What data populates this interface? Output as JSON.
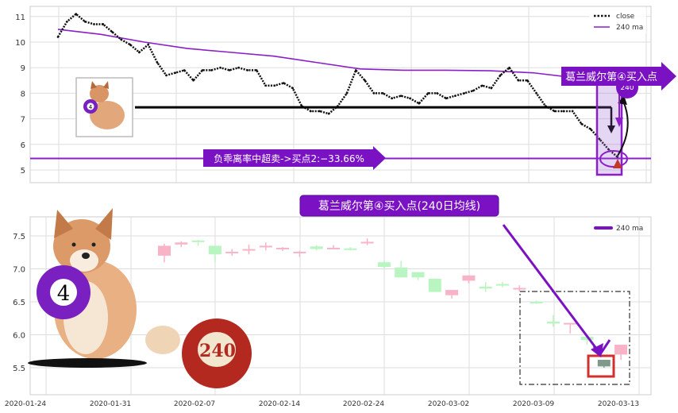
{
  "chart_data": [
    {
      "type": "line",
      "legend": [
        "close",
        "240 ma"
      ],
      "legend_position": "top-right",
      "grid": true,
      "ylim": [
        4.5,
        11.4
      ],
      "yticks": [
        "5",
        "6",
        "7",
        "8",
        "9",
        "10",
        "11"
      ],
      "series": [
        {
          "name": "close",
          "style": "dotted",
          "color": "#111111",
          "values": [
            10.2,
            10.8,
            11.1,
            10.8,
            10.7,
            10.7,
            10.4,
            10.1,
            9.9,
            9.6,
            9.9,
            9.2,
            8.7,
            8.8,
            8.9,
            8.5,
            8.9,
            8.9,
            9.0,
            8.9,
            9.0,
            8.9,
            8.9,
            8.3,
            8.3,
            8.4,
            8.2,
            7.5,
            7.3,
            7.3,
            7.2,
            7.5,
            8.0,
            8.9,
            8.5,
            8.0,
            8.0,
            7.8,
            7.9,
            7.8,
            7.6,
            8.0,
            8.0,
            7.8,
            7.9,
            8.0,
            8.1,
            8.3,
            8.2,
            8.7,
            9.0,
            8.5,
            8.5,
            8.0,
            7.5,
            7.3,
            7.3,
            7.3,
            6.8,
            6.6,
            6.2,
            5.8,
            5.5
          ]
        },
        {
          "name": "240 ma",
          "color": "#8a1fc8",
          "values": [
            10.5,
            10.3,
            10.0,
            9.75,
            9.6,
            9.45,
            9.2,
            8.95,
            8.9,
            8.9,
            8.88,
            8.8,
            8.6,
            8.4
          ]
        }
      ],
      "hlines": [
        {
          "value": 5.45,
          "color": "#8a1fc8"
        },
        {
          "value": 7.45,
          "color": "#000000"
        }
      ],
      "annotations": {
        "oversold": "负乖离率中超卖->买点2:−33.66%",
        "buy_point": "葛兰威尔第④买入点",
        "bubble": "240"
      }
    },
    {
      "type": "candlestick",
      "legend": [
        "240 ma"
      ],
      "legend_position": "top-right",
      "grid": true,
      "ylim": [
        5.1,
        7.8
      ],
      "yticks": [
        "5.5",
        "6.0",
        "6.5",
        "7.0",
        "7.5"
      ],
      "xticks": [
        "2020-01-24",
        "2020-01-31",
        "2020-02-07",
        "2020-02-14",
        "2020-02-24",
        "2020-03-02",
        "2020-03-09",
        "2020-03-13"
      ],
      "title_annotation": "葛兰威尔第④买入点(240日均线)",
      "ball_label": "240",
      "ball_number": "4",
      "colors": {
        "up": "#f9b3c6",
        "down": "#b9f5c0",
        "highlight": "#7f9a8a",
        "accent": "#7a12c4",
        "box": "#d0312d"
      },
      "candles": [
        {
          "o": 7.2,
          "c": 7.35,
          "h": 7.38,
          "l": 7.1,
          "color": "up"
        },
        {
          "o": 7.37,
          "c": 7.4,
          "h": 7.42,
          "l": 7.33,
          "color": "up"
        },
        {
          "o": 7.43,
          "c": 7.42,
          "h": 7.44,
          "l": 7.35,
          "color": "down"
        },
        {
          "o": 7.35,
          "c": 7.22,
          "h": 7.35,
          "l": 7.1,
          "color": "down"
        },
        {
          "o": 7.25,
          "c": 7.26,
          "h": 7.3,
          "l": 7.2,
          "color": "up"
        },
        {
          "o": 7.3,
          "c": 7.3,
          "h": 7.37,
          "l": 7.22,
          "color": "up"
        },
        {
          "o": 7.35,
          "c": 7.35,
          "h": 7.4,
          "l": 7.28,
          "color": "up"
        },
        {
          "o": 7.32,
          "c": 7.3,
          "h": 7.33,
          "l": 7.27,
          "color": "up"
        },
        {
          "o": 7.26,
          "c": 7.25,
          "h": 7.27,
          "l": 7.18,
          "color": "up"
        },
        {
          "o": 7.34,
          "c": 7.3,
          "h": 7.36,
          "l": 7.28,
          "color": "down"
        },
        {
          "o": 7.32,
          "c": 7.32,
          "h": 7.36,
          "l": 7.3,
          "color": "up"
        },
        {
          "o": 7.31,
          "c": 7.31,
          "h": 7.33,
          "l": 7.28,
          "color": "down"
        },
        {
          "o": 7.39,
          "c": 7.41,
          "h": 7.46,
          "l": 7.36,
          "color": "up"
        },
        {
          "o": 7.1,
          "c": 7.03,
          "h": 7.12,
          "l": 7.0,
          "color": "down"
        },
        {
          "o": 7.02,
          "c": 6.87,
          "h": 7.12,
          "l": 6.87,
          "color": "down"
        },
        {
          "o": 6.95,
          "c": 6.87,
          "h": 6.95,
          "l": 6.83,
          "color": "down"
        },
        {
          "o": 6.85,
          "c": 6.65,
          "h": 6.85,
          "l": 6.65,
          "color": "down"
        },
        {
          "o": 6.6,
          "c": 6.68,
          "h": 6.68,
          "l": 6.55,
          "color": "up"
        },
        {
          "o": 6.82,
          "c": 6.9,
          "h": 6.9,
          "l": 6.78,
          "color": "up"
        },
        {
          "o": 6.73,
          "c": 6.7,
          "h": 6.8,
          "l": 6.65,
          "color": "down"
        },
        {
          "o": 6.77,
          "c": 6.75,
          "h": 6.8,
          "l": 6.72,
          "color": "down"
        },
        {
          "o": 6.7,
          "c": 6.71,
          "h": 6.75,
          "l": 6.65,
          "color": "up"
        },
        {
          "o": 6.5,
          "c": 6.48,
          "h": 6.52,
          "l": 6.47,
          "color": "down"
        },
        {
          "o": 6.2,
          "c": 6.17,
          "h": 6.3,
          "l": 6.12,
          "color": "down"
        },
        {
          "o": 6.18,
          "c": 6.17,
          "h": 6.18,
          "l": 6.02,
          "color": "up"
        },
        {
          "o": 5.97,
          "c": 5.92,
          "h": 6.0,
          "l": 5.85,
          "color": "down"
        },
        {
          "o": 5.62,
          "c": 5.52,
          "h": 5.62,
          "l": 5.5,
          "color": "highlight"
        },
        {
          "o": 5.7,
          "c": 5.85,
          "h": 5.85,
          "l": 5.62,
          "color": "up"
        }
      ]
    }
  ]
}
